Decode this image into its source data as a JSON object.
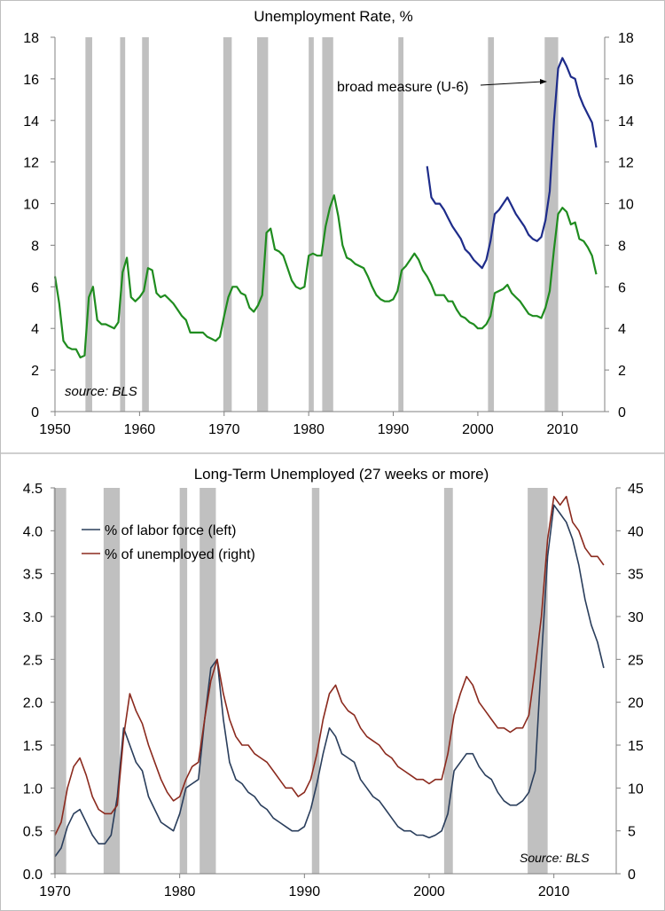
{
  "chart_data": [
    {
      "type": "line",
      "title": "Unemployment Rate, %",
      "xlim": [
        1950,
        2015
      ],
      "ylim": [
        0,
        18
      ],
      "x_ticks": [
        "1950",
        "1960",
        "1970",
        "1980",
        "1990",
        "2000",
        "2010"
      ],
      "y_ticks_left": [
        "0",
        "2",
        "4",
        "6",
        "8",
        "10",
        "12",
        "14",
        "16",
        "18"
      ],
      "y_ticks_right": [
        "0",
        "2",
        "4",
        "6",
        "8",
        "10",
        "12",
        "14",
        "16",
        "18"
      ],
      "recessions": [
        [
          1953.6,
          1954.4
        ],
        [
          1957.7,
          1958.3
        ],
        [
          1960.3,
          1961.1
        ],
        [
          1969.9,
          1970.9
        ],
        [
          1973.9,
          1975.2
        ],
        [
          1980.0,
          1980.6
        ],
        [
          1981.6,
          1982.9
        ],
        [
          1990.6,
          1991.2
        ],
        [
          2001.2,
          2001.9
        ],
        [
          2007.9,
          2009.5
        ]
      ],
      "annotation": "broad measure (U-6)",
      "source": "source: BLS",
      "grid": false,
      "series": [
        {
          "color": "#1f8c1f",
          "x": [
            1950,
            1950.5,
            1951,
            1951.5,
            1952,
            1952.5,
            1953,
            1953.5,
            1954,
            1954.5,
            1955,
            1955.5,
            1956,
            1956.5,
            1957,
            1957.5,
            1958,
            1958.5,
            1959,
            1959.5,
            1960,
            1960.5,
            1961,
            1961.5,
            1962,
            1962.5,
            1963,
            1963.5,
            1964,
            1964.5,
            1965,
            1965.5,
            1966,
            1966.5,
            1967,
            1967.5,
            1968,
            1968.5,
            1969,
            1969.5,
            1970,
            1970.5,
            1971,
            1971.5,
            1972,
            1972.5,
            1973,
            1973.5,
            1974,
            1974.5,
            1975,
            1975.5,
            1976,
            1976.5,
            1977,
            1977.5,
            1978,
            1978.5,
            1979,
            1979.5,
            1980,
            1980.5,
            1981,
            1981.5,
            1982,
            1982.5,
            1983,
            1983.5,
            1984,
            1984.5,
            1985,
            1985.5,
            1986,
            1986.5,
            1987,
            1987.5,
            1988,
            1988.5,
            1989,
            1989.5,
            1990,
            1990.5,
            1991,
            1991.5,
            1992,
            1992.5,
            1993,
            1993.5,
            1994,
            1994.5,
            1995,
            1995.5,
            1996,
            1996.5,
            1997,
            1997.5,
            1998,
            1998.5,
            1999,
            1999.5,
            2000,
            2000.5,
            2001,
            2001.5,
            2002,
            2002.5,
            2003,
            2003.5,
            2004,
            2004.5,
            2005,
            2005.5,
            2006,
            2006.5,
            2007,
            2007.5,
            2008,
            2008.5,
            2009,
            2009.5,
            2010,
            2010.5,
            2011,
            2011.5,
            2012,
            2012.5,
            2013,
            2013.5,
            2014
          ],
          "values": [
            6.5,
            5.2,
            3.4,
            3.1,
            3.0,
            3.0,
            2.6,
            2.7,
            5.5,
            6.0,
            4.4,
            4.2,
            4.2,
            4.1,
            4.0,
            4.3,
            6.7,
            7.4,
            5.5,
            5.3,
            5.5,
            5.8,
            6.9,
            6.8,
            5.7,
            5.5,
            5.6,
            5.4,
            5.2,
            4.9,
            4.6,
            4.4,
            3.8,
            3.8,
            3.8,
            3.8,
            3.6,
            3.5,
            3.4,
            3.6,
            4.6,
            5.5,
            6.0,
            6.0,
            5.7,
            5.6,
            5.0,
            4.8,
            5.1,
            5.6,
            8.6,
            8.8,
            7.8,
            7.7,
            7.5,
            6.9,
            6.3,
            6.0,
            5.9,
            6.0,
            7.5,
            7.6,
            7.5,
            7.5,
            8.9,
            9.8,
            10.4,
            9.4,
            8.0,
            7.4,
            7.3,
            7.1,
            7.0,
            6.9,
            6.5,
            6.0,
            5.6,
            5.4,
            5.3,
            5.3,
            5.4,
            5.8,
            6.8,
            7.0,
            7.3,
            7.6,
            7.3,
            6.8,
            6.5,
            6.1,
            5.6,
            5.6,
            5.6,
            5.3,
            5.3,
            4.9,
            4.6,
            4.5,
            4.3,
            4.2,
            4.0,
            4.0,
            4.2,
            4.6,
            5.7,
            5.8,
            5.9,
            6.1,
            5.7,
            5.5,
            5.3,
            5.0,
            4.7,
            4.6,
            4.6,
            4.5,
            5.0,
            5.8,
            7.8,
            9.5,
            9.8,
            9.6,
            9.0,
            9.1,
            8.3,
            8.2,
            7.9,
            7.5,
            6.6
          ]
        },
        {
          "color": "#1e2c8a",
          "x": [
            1994,
            1994.5,
            1995,
            1995.5,
            1996,
            1996.5,
            1997,
            1997.5,
            1998,
            1998.5,
            1999,
            1999.5,
            2000,
            2000.5,
            2001,
            2001.5,
            2002,
            2002.5,
            2003,
            2003.5,
            2004,
            2004.5,
            2005,
            2005.5,
            2006,
            2006.5,
            2007,
            2007.5,
            2008,
            2008.5,
            2009,
            2009.5,
            2010,
            2010.5,
            2011,
            2011.5,
            2012,
            2012.5,
            2013,
            2013.5,
            2014
          ],
          "values": [
            11.8,
            10.3,
            10.0,
            10.0,
            9.7,
            9.3,
            8.9,
            8.6,
            8.3,
            7.8,
            7.6,
            7.3,
            7.1,
            6.9,
            7.3,
            8.2,
            9.5,
            9.7,
            10.0,
            10.3,
            9.9,
            9.5,
            9.2,
            8.9,
            8.5,
            8.3,
            8.2,
            8.4,
            9.2,
            10.6,
            14.0,
            16.5,
            17.0,
            16.6,
            16.1,
            16.0,
            15.2,
            14.7,
            14.3,
            13.9,
            12.7
          ]
        }
      ]
    },
    {
      "type": "line",
      "title": "Long-Term Unemployed (27 weeks or more)",
      "xlim": [
        1970,
        2015
      ],
      "ylim_left": [
        0,
        4.5
      ],
      "ylim_right": [
        0,
        45
      ],
      "x_ticks": [
        "1970",
        "1980",
        "1990",
        "2000",
        "2010"
      ],
      "y_ticks_left": [
        "0.0",
        "0.5",
        "1.0",
        "1.5",
        "2.0",
        "2.5",
        "3.0",
        "3.5",
        "4.0",
        "4.5"
      ],
      "y_ticks_right": [
        "0",
        "5",
        "10",
        "15",
        "20",
        "25",
        "30",
        "35",
        "40",
        "45"
      ],
      "recessions": [
        [
          1969.9,
          1970.9
        ],
        [
          1973.9,
          1975.2
        ],
        [
          1980.0,
          1980.6
        ],
        [
          1981.6,
          1982.9
        ],
        [
          1990.6,
          1991.2
        ],
        [
          2001.2,
          2001.9
        ],
        [
          2007.9,
          2009.5
        ]
      ],
      "legend_position": "top-left",
      "source": "Source: BLS",
      "grid": false,
      "series": [
        {
          "name": "% of labor force (left)",
          "axis": "left",
          "color": "#2a3e5c",
          "x": [
            1970,
            1970.5,
            1971,
            1971.5,
            1972,
            1972.5,
            1973,
            1973.5,
            1974,
            1974.5,
            1975,
            1975.5,
            1976,
            1976.5,
            1977,
            1977.5,
            1978,
            1978.5,
            1979,
            1979.5,
            1980,
            1980.5,
            1981,
            1981.5,
            1982,
            1982.5,
            1983,
            1983.5,
            1984,
            1984.5,
            1985,
            1985.5,
            1986,
            1986.5,
            1987,
            1987.5,
            1988,
            1988.5,
            1989,
            1989.5,
            1990,
            1990.5,
            1991,
            1991.5,
            1992,
            1992.5,
            1993,
            1993.5,
            1994,
            1994.5,
            1995,
            1995.5,
            1996,
            1996.5,
            1997,
            1997.5,
            1998,
            1998.5,
            1999,
            1999.5,
            2000,
            2000.5,
            2001,
            2001.5,
            2002,
            2002.5,
            2003,
            2003.5,
            2004,
            2004.5,
            2005,
            2005.5,
            2006,
            2006.5,
            2007,
            2007.5,
            2008,
            2008.5,
            2009,
            2009.5,
            2010,
            2010.5,
            2011,
            2011.5,
            2012,
            2012.5,
            2013,
            2013.5,
            2014
          ],
          "values": [
            0.2,
            0.3,
            0.55,
            0.7,
            0.75,
            0.6,
            0.45,
            0.35,
            0.35,
            0.45,
            0.9,
            1.7,
            1.5,
            1.3,
            1.2,
            0.9,
            0.75,
            0.6,
            0.55,
            0.5,
            0.7,
            1.0,
            1.05,
            1.1,
            1.8,
            2.4,
            2.5,
            1.8,
            1.3,
            1.1,
            1.05,
            0.95,
            0.9,
            0.8,
            0.75,
            0.65,
            0.6,
            0.55,
            0.5,
            0.5,
            0.55,
            0.75,
            1.05,
            1.4,
            1.7,
            1.6,
            1.4,
            1.35,
            1.3,
            1.1,
            1.0,
            0.9,
            0.85,
            0.75,
            0.65,
            0.55,
            0.5,
            0.5,
            0.45,
            0.45,
            0.42,
            0.45,
            0.5,
            0.7,
            1.2,
            1.3,
            1.4,
            1.4,
            1.25,
            1.15,
            1.1,
            0.95,
            0.85,
            0.8,
            0.8,
            0.85,
            0.95,
            1.2,
            2.5,
            3.7,
            4.3,
            4.2,
            4.1,
            3.9,
            3.6,
            3.2,
            2.9,
            2.7,
            2.4
          ]
        },
        {
          "name": "% of unemployed (right)",
          "axis": "right",
          "color": "#8b2a1e",
          "x": [
            1970,
            1970.5,
            1971,
            1971.5,
            1972,
            1972.5,
            1973,
            1973.5,
            1974,
            1974.5,
            1975,
            1975.5,
            1976,
            1976.5,
            1977,
            1977.5,
            1978,
            1978.5,
            1979,
            1979.5,
            1980,
            1980.5,
            1981,
            1981.5,
            1982,
            1982.5,
            1983,
            1983.5,
            1984,
            1984.5,
            1985,
            1985.5,
            1986,
            1986.5,
            1987,
            1987.5,
            1988,
            1988.5,
            1989,
            1989.5,
            1990,
            1990.5,
            1991,
            1991.5,
            1992,
            1992.5,
            1993,
            1993.5,
            1994,
            1994.5,
            1995,
            1995.5,
            1996,
            1996.5,
            1997,
            1997.5,
            1998,
            1998.5,
            1999,
            1999.5,
            2000,
            2000.5,
            2001,
            2001.5,
            2002,
            2002.5,
            2003,
            2003.5,
            2004,
            2004.5,
            2005,
            2005.5,
            2006,
            2006.5,
            2007,
            2007.5,
            2008,
            2008.5,
            2009,
            2009.5,
            2010,
            2010.5,
            2011,
            2011.5,
            2012,
            2012.5,
            2013,
            2013.5,
            2014
          ],
          "values": [
            4.5,
            6,
            10,
            12.5,
            13.5,
            11.5,
            9,
            7.5,
            7,
            7,
            8,
            16,
            21,
            19,
            17.5,
            15,
            13,
            11,
            9.5,
            8.5,
            9,
            11,
            12.5,
            13,
            18,
            22.5,
            25,
            21,
            18,
            16,
            15,
            15,
            14,
            13.5,
            13,
            12,
            11,
            10,
            10,
            9,
            9.5,
            11,
            14,
            18,
            21,
            22,
            20,
            19,
            18.5,
            17,
            16,
            15.5,
            15,
            14,
            13.5,
            12.5,
            12,
            11.5,
            11,
            11,
            10.5,
            11,
            11,
            14,
            18.5,
            21,
            23,
            22,
            20,
            19,
            18,
            17,
            17,
            16.5,
            17,
            17,
            18.5,
            24,
            30,
            39,
            44,
            43,
            44,
            41,
            40,
            38,
            37,
            37,
            36
          ]
        }
      ]
    }
  ]
}
